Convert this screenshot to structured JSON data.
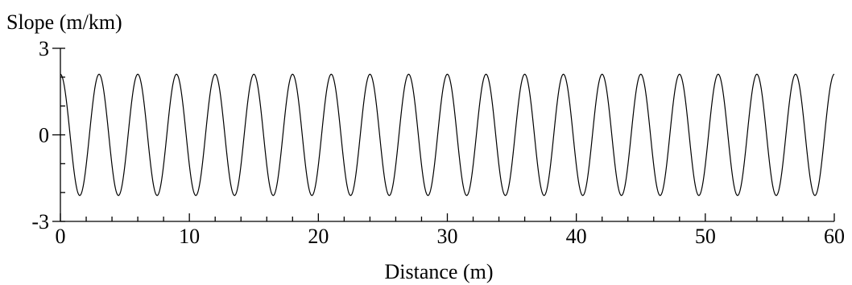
{
  "chart_data": {
    "type": "line",
    "title": "",
    "xlabel": "Distance (m)",
    "ylabel": "Slope (m/km)",
    "xlim": [
      0,
      60
    ],
    "ylim": [
      -3,
      3
    ],
    "x_ticks": [
      0,
      10,
      20,
      30,
      40,
      50,
      60
    ],
    "y_ticks": [
      -3,
      0,
      3
    ],
    "x_tick_labels": [
      "0",
      "10",
      "20",
      "30",
      "40",
      "50",
      "60"
    ],
    "y_tick_labels": [
      "-3",
      "0",
      "3"
    ],
    "grid": false,
    "series": [
      {
        "function": "sinusoid",
        "amplitude": 2.1,
        "period": 3.0,
        "phase": "cosine",
        "x_start": 0,
        "x_end": 60,
        "color": "#000000"
      }
    ]
  }
}
